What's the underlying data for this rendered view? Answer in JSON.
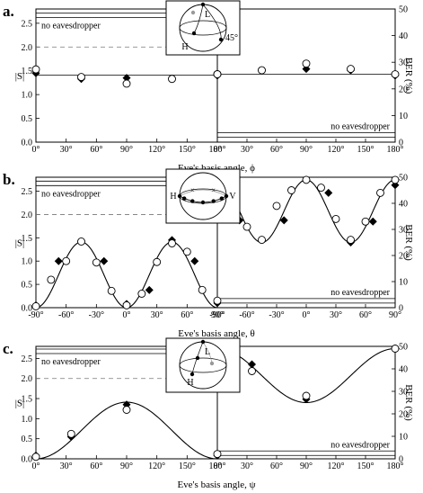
{
  "labels": {
    "panel_labels": [
      "a.",
      "b.",
      "c."
    ],
    "left_ylabel": "|S|",
    "right_ylabel": "BER (%)",
    "no_eavesdropper": "no eavesdropper",
    "sphere_labels": {
      "a": [
        "L",
        "H",
        "45°"
      ],
      "b": [
        "H",
        "V"
      ],
      "c": [
        "L",
        "H"
      ]
    }
  },
  "chart_data": [
    {
      "panel": "a",
      "type": "scatter",
      "xlabel": "Eve's basis angle, ϕ",
      "xlim": [
        0,
        180
      ],
      "xticks": [
        0,
        30,
        60,
        90,
        120,
        150,
        180
      ],
      "xtick_labels": [
        "0°",
        "30°",
        "60°",
        "90°",
        "120°",
        "150°",
        "180°"
      ],
      "left": {
        "ylabel": "|S|",
        "ylim": [
          0,
          2.8
        ],
        "yticks": [
          0.0,
          0.5,
          1.0,
          1.5,
          2.0,
          2.5
        ],
        "ytick_labels": [
          "0.0",
          "0.5",
          "1.0",
          "1.5",
          "2.0",
          "2.5"
        ],
        "reference_lines": [
          {
            "label": "no eavesdropper",
            "value": 2.62
          },
          {
            "value": 2.0,
            "style": "dashed"
          },
          {
            "value": 1.41
          }
        ],
        "series": [
          {
            "marker": "filled-diamond",
            "x": [
              0,
              45,
              90,
              135,
              180
            ],
            "y": [
              1.45,
              1.33,
              1.35,
              1.33,
              1.42
            ]
          },
          {
            "marker": "open-circle",
            "x": [
              0,
              45,
              90,
              135,
              180
            ],
            "y": [
              1.53,
              1.37,
              1.23,
              1.33,
              1.43
            ]
          }
        ]
      },
      "right": {
        "ylabel": "BER (%)",
        "ylim": [
          0,
          50
        ],
        "yticks": [
          0,
          10,
          20,
          30,
          40,
          50
        ],
        "reference_lines": [
          {
            "label": "no eavesdropper",
            "value": 3.5
          },
          {
            "value": 25.5
          }
        ],
        "series": [
          {
            "marker": "filled-diamond",
            "x": [
              0,
              45,
              90,
              135,
              180
            ],
            "y": [
              25,
              27,
              27.5,
              27,
              25
            ]
          },
          {
            "marker": "open-circle",
            "x": [
              0,
              45,
              90,
              135,
              180
            ],
            "y": [
              25.5,
              27,
              29.5,
              27.5,
              25.5
            ]
          }
        ]
      }
    },
    {
      "panel": "b",
      "type": "scatter",
      "xlabel": "Eve's basis angle, θ",
      "xlim": [
        -90,
        90
      ],
      "xticks": [
        -90,
        -60,
        -30,
        0,
        30,
        60,
        90
      ],
      "xtick_labels": [
        "-90°",
        "-60°",
        "-30°",
        "0°",
        "30°",
        "60°",
        "90°"
      ],
      "left": {
        "ylabel": "|S|",
        "ylim": [
          0,
          2.8
        ],
        "yticks": [
          0.0,
          0.5,
          1.0,
          1.5,
          2.0,
          2.5
        ],
        "ytick_labels": [
          "0.0",
          "0.5",
          "1.0",
          "1.5",
          "2.0",
          "2.5"
        ],
        "reference_lines": [
          {
            "label": "no eavesdropper",
            "value": 2.62
          },
          {
            "value": 2.0,
            "style": "dashed"
          }
        ],
        "fit": "sin2",
        "series": [
          {
            "marker": "filled-diamond",
            "x": [
              -90,
              -67.5,
              -22.5,
              0,
              22.5,
              45,
              67.5,
              90
            ],
            "y": [
              0.05,
              1.0,
              1.0,
              0.08,
              0.38,
              1.45,
              1.0,
              0.1
            ]
          },
          {
            "marker": "open-circle",
            "x": [
              -90,
              -75,
              -60,
              -45,
              -30,
              -15,
              0,
              15,
              30,
              45,
              60,
              75,
              90
            ],
            "y": [
              0.03,
              0.6,
              1.0,
              1.42,
              0.97,
              0.36,
              0.05,
              0.3,
              0.98,
              1.38,
              1.2,
              0.38,
              0.15
            ]
          }
        ]
      },
      "right": {
        "ylabel": "BER (%)",
        "ylim": [
          0,
          50
        ],
        "yticks": [
          0,
          10,
          20,
          30,
          40,
          50
        ],
        "reference_lines": [
          {
            "label": "no eavesdropper",
            "value": 3.5
          }
        ],
        "fit": "cos2",
        "series": [
          {
            "marker": "filled-diamond",
            "x": [
              -90,
              -67.5,
              -22.5,
              0,
              22.5,
              45,
              67.5,
              90
            ],
            "y": [
              48,
              33.5,
              33.5,
              49,
              44,
              25,
              33,
              47
            ]
          },
          {
            "marker": "open-circle",
            "x": [
              -90,
              -75,
              -60,
              -45,
              -30,
              -15,
              0,
              15,
              30,
              45,
              60,
              75,
              90
            ],
            "y": [
              48.5,
              39,
              31,
              26,
              39,
              45,
              49,
              46,
              34,
              26,
              33,
              44,
              49
            ]
          }
        ]
      }
    },
    {
      "panel": "c",
      "type": "scatter",
      "xlabel": "Eve's basis angle, ψ",
      "xlim": [
        0,
        180
      ],
      "xticks": [
        0,
        30,
        60,
        90,
        120,
        150,
        180
      ],
      "xtick_labels": [
        "0°",
        "30°",
        "60°",
        "90°",
        "120°",
        "150°",
        "180°"
      ],
      "left": {
        "ylabel": "|S|",
        "ylim": [
          0,
          2.8
        ],
        "yticks": [
          0.0,
          0.5,
          1.0,
          1.5,
          2.0,
          2.5
        ],
        "ytick_labels": [
          "0.0",
          "0.5",
          "1.0",
          "1.5",
          "2.0",
          "2.5"
        ],
        "reference_lines": [
          {
            "label": "no eavesdropper",
            "value": 2.62
          },
          {
            "value": 2.0,
            "style": "dashed"
          }
        ],
        "fit": "sin2",
        "series": [
          {
            "marker": "filled-diamond",
            "x": [
              0,
              35,
              90,
              180
            ],
            "y": [
              0.08,
              0.55,
              1.35,
              0.08
            ]
          },
          {
            "marker": "open-circle",
            "x": [
              0,
              35,
              90,
              180
            ],
            "y": [
              0.05,
              0.62,
              1.22,
              0.12
            ]
          }
        ]
      },
      "right": {
        "ylabel": "BER (%)",
        "ylim": [
          0,
          50
        ],
        "yticks": [
          0,
          10,
          20,
          30,
          40,
          50
        ],
        "reference_lines": [
          {
            "label": "no eavesdropper",
            "value": 3.5
          }
        ],
        "fit": "cos2",
        "series": [
          {
            "marker": "filled-diamond",
            "x": [
              0,
              35,
              90,
              180
            ],
            "y": [
              49,
              42,
              26.5,
              49
            ]
          },
          {
            "marker": "open-circle",
            "x": [
              0,
              35,
              90,
              180
            ],
            "y": [
              49,
              39,
              28,
              49
            ]
          }
        ]
      }
    }
  ]
}
